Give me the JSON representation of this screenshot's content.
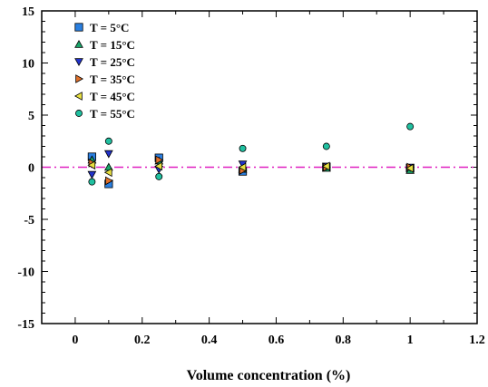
{
  "chart_data": {
    "type": "scatter",
    "title": "",
    "xlabel": "Volume concentration (%)",
    "ylabel": "",
    "xlim": [
      -0.1,
      1.2
    ],
    "ylim": [
      -15,
      15
    ],
    "x_ticks": [
      "0",
      "0.2",
      "0.4",
      "0.6",
      "0.8",
      "1",
      "1.2"
    ],
    "y_ticks": [
      "15",
      "10",
      "5",
      "0",
      "-5",
      "-10",
      "-15"
    ],
    "grid": false,
    "legend_position": "top-left",
    "reference_line": {
      "y": 0,
      "style": "dash-dot",
      "color": "#e020c0"
    },
    "series": [
      {
        "name": "T = 5°C",
        "marker": "square",
        "color": "#2a7fe0",
        "x": [
          0.05,
          0.1,
          0.25,
          0.5,
          0.75,
          1.0
        ],
        "y": [
          1.0,
          -1.6,
          0.9,
          -0.4,
          0.0,
          -0.1
        ]
      },
      {
        "name": "T = 15°C",
        "marker": "triangle-up",
        "color": "#1aa56a",
        "x": [
          0.05,
          0.1,
          0.25,
          0.5,
          0.75,
          1.0
        ],
        "y": [
          0.7,
          0.0,
          0.6,
          -0.2,
          -0.1,
          -0.3
        ]
      },
      {
        "name": "T = 25°C",
        "marker": "triangle-down",
        "color": "#2233cc",
        "x": [
          0.05,
          0.1,
          0.25,
          0.5,
          0.75,
          1.0
        ],
        "y": [
          -0.7,
          1.3,
          -0.2,
          0.3,
          0.1,
          0.0
        ]
      },
      {
        "name": "T = 35°C",
        "marker": "triangle-right",
        "color": "#e0702a",
        "x": [
          0.05,
          0.1,
          0.25,
          0.5,
          0.75,
          1.0
        ],
        "y": [
          0.4,
          -1.3,
          0.7,
          -0.3,
          0.0,
          0.0
        ]
      },
      {
        "name": "T = 45°C",
        "marker": "triangle-left",
        "color": "#e8e040",
        "x": [
          0.05,
          0.1,
          0.25,
          0.5,
          0.75,
          1.0
        ],
        "y": [
          0.2,
          -0.5,
          0.1,
          0.0,
          0.1,
          -0.1
        ]
      },
      {
        "name": "T = 55°C",
        "marker": "circle",
        "color": "#20c0a0",
        "x": [
          0.05,
          0.1,
          0.25,
          0.5,
          0.75,
          1.0
        ],
        "y": [
          -1.4,
          2.5,
          -0.9,
          1.8,
          2.0,
          3.9
        ]
      }
    ]
  }
}
